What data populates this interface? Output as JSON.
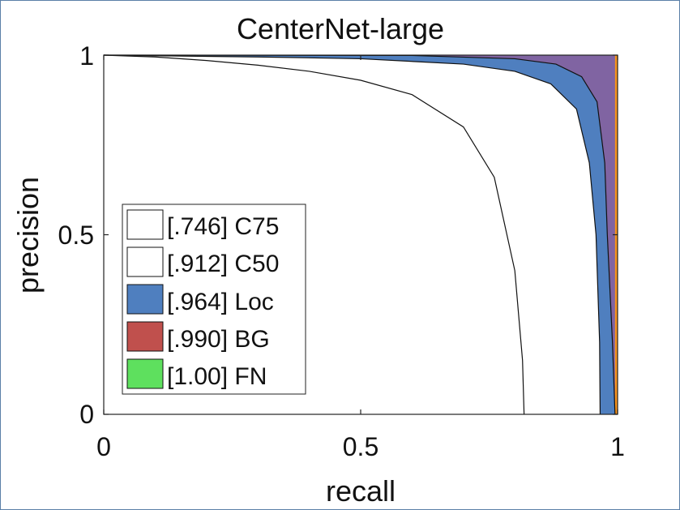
{
  "chart_data": {
    "type": "area",
    "title": "CenterNet-large",
    "xlabel": "recall",
    "ylabel": "precision",
    "xlim": [
      0,
      1
    ],
    "ylim": [
      0,
      1
    ],
    "xticks": [
      0,
      0.5,
      1
    ],
    "yticks": [
      0,
      0.5,
      1
    ],
    "xtick_labels": [
      "0",
      "0.5",
      "1"
    ],
    "ytick_labels": [
      "0",
      "0.5",
      "1"
    ],
    "grid": false,
    "legend_position": "bottom-left",
    "series": [
      {
        "name": "[.746] C75",
        "color": "#ffffff",
        "points": [
          [
            0,
            1
          ],
          [
            0.1,
            0.995
          ],
          [
            0.2,
            0.985
          ],
          [
            0.3,
            0.972
          ],
          [
            0.4,
            0.955
          ],
          [
            0.5,
            0.93
          ],
          [
            0.6,
            0.89
          ],
          [
            0.7,
            0.8
          ],
          [
            0.76,
            0.66
          ],
          [
            0.8,
            0.4
          ],
          [
            0.815,
            0.15
          ],
          [
            0.818,
            0
          ]
        ]
      },
      {
        "name": "[.912] C50",
        "color": "#ffffff",
        "points": [
          [
            0,
            1
          ],
          [
            0.3,
            0.995
          ],
          [
            0.5,
            0.99
          ],
          [
            0.7,
            0.975
          ],
          [
            0.8,
            0.955
          ],
          [
            0.87,
            0.92
          ],
          [
            0.92,
            0.85
          ],
          [
            0.945,
            0.7
          ],
          [
            0.958,
            0.5
          ],
          [
            0.965,
            0.2
          ],
          [
            0.966,
            0
          ]
        ]
      },
      {
        "name": "[.964] Loc",
        "color": "#4f7fbf",
        "points": [
          [
            0,
            1
          ],
          [
            0.6,
            0.999
          ],
          [
            0.8,
            0.99
          ],
          [
            0.88,
            0.975
          ],
          [
            0.93,
            0.94
          ],
          [
            0.96,
            0.87
          ],
          [
            0.975,
            0.7
          ],
          [
            0.98,
            0.5
          ],
          [
            0.99,
            0.2
          ],
          [
            0.995,
            0
          ]
        ]
      },
      {
        "name": "[.990] BG",
        "color": "#c0504d",
        "points": [
          [
            0,
            1
          ],
          [
            0.995,
            1
          ],
          [
            0.995,
            0
          ]
        ]
      },
      {
        "name": "[1.00] FN",
        "color": "#5ee05e",
        "points": [
          [
            0,
            1
          ],
          [
            1,
            1
          ],
          [
            1,
            0
          ]
        ]
      }
    ],
    "extra_bands": [
      {
        "color": "#8064a2"
      },
      {
        "color": "#f7941d"
      }
    ]
  }
}
